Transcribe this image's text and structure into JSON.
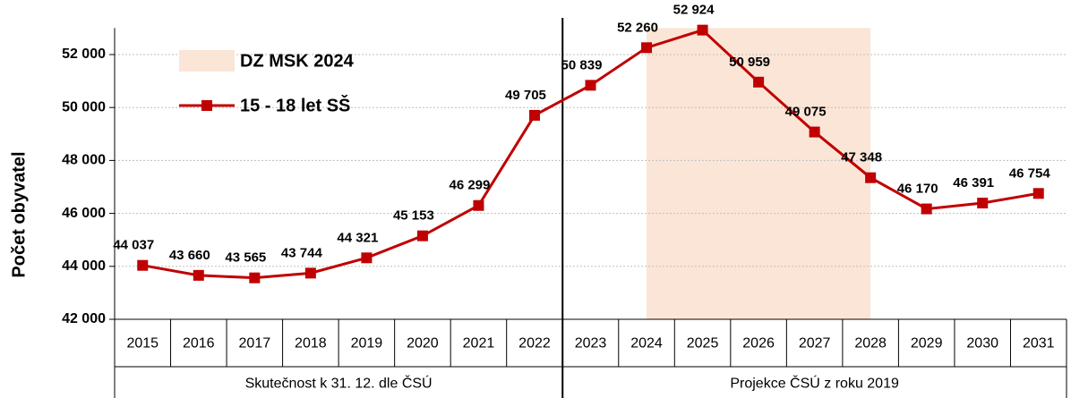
{
  "chart_data": {
    "type": "line",
    "y_label": "Počet obyvatel",
    "categories": [
      "2015",
      "2016",
      "2017",
      "2018",
      "2019",
      "2020",
      "2021",
      "2022",
      "2023",
      "2024",
      "2025",
      "2026",
      "2027",
      "2028",
      "2029",
      "2030",
      "2031"
    ],
    "series": [
      {
        "name": "15 - 18 let  SŠ",
        "color": "#c00000",
        "values": [
          44037,
          43660,
          43565,
          43744,
          44321,
          45153,
          46299,
          49705,
          50839,
          52260,
          52924,
          50959,
          49075,
          47348,
          46170,
          46391,
          46754
        ],
        "value_labels": [
          "44 037",
          "43 660",
          "43 565",
          "43 744",
          "44 321",
          "45 153",
          "46 299",
          "49 705",
          "50 839",
          "52 260",
          "52 924",
          "50 959",
          "49 075",
          "47 348",
          "46 170",
          "46 391",
          "46 754"
        ]
      }
    ],
    "shade": {
      "name": "DZ MSK 2024",
      "from": "2024",
      "to": "2028",
      "color": "#fbe5d6"
    },
    "groups": [
      {
        "label": "Skutečnost  k 31. 12. dle  ČSÚ",
        "span": 8
      },
      {
        "label": "Projekce ČSÚ  z roku 2019",
        "span": 9
      }
    ],
    "ylim": [
      42000,
      53000
    ],
    "yticks": [
      {
        "value": 42000,
        "label": "42 000"
      },
      {
        "value": 44000,
        "label": "44 000"
      },
      {
        "value": 46000,
        "label": "46 000"
      },
      {
        "value": 48000,
        "label": "48 000"
      },
      {
        "value": 50000,
        "label": "50 000"
      },
      {
        "value": 52000,
        "label": "52 000"
      }
    ],
    "grid": true
  }
}
